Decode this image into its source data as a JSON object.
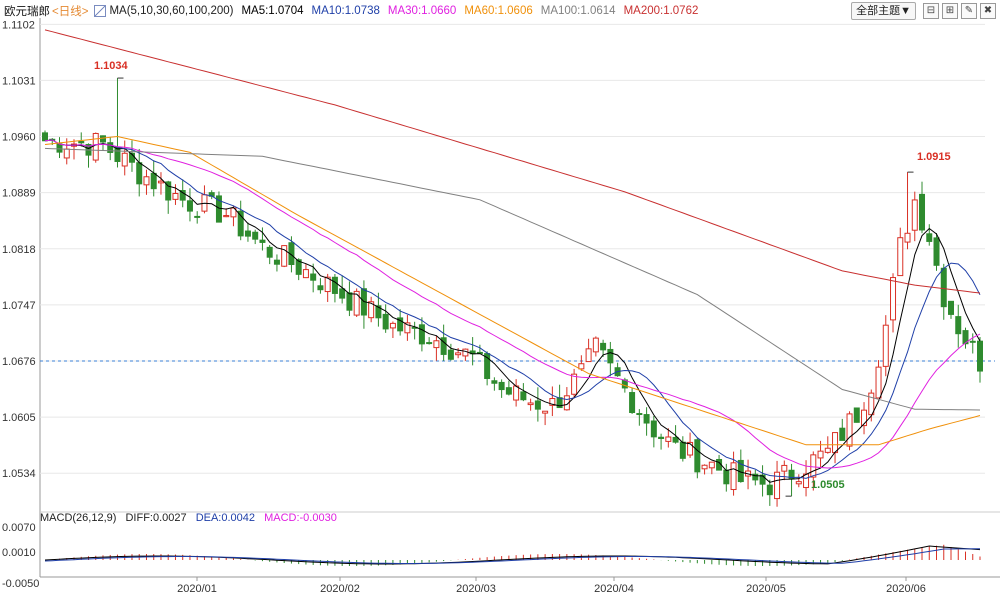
{
  "header": {
    "symbol": "欧元瑞郎",
    "period": "<日线>",
    "ma_def": "MA(5,10,30,60,100,200)",
    "ma": [
      {
        "label": "MA5:1.0704",
        "color": "#000000"
      },
      {
        "label": "MA10:1.0738",
        "color": "#1f3fa8"
      },
      {
        "label": "MA30:1.0660",
        "color": "#e020e0"
      },
      {
        "label": "MA60:1.0606",
        "color": "#f0900a"
      },
      {
        "label": "MA100:1.0614",
        "color": "#808080"
      },
      {
        "label": "MA200:1.0762",
        "color": "#c83030"
      }
    ]
  },
  "toolbar": {
    "theme_label": "全部主题▼",
    "b1": "⊟",
    "b2": "⊞",
    "b3": "✎",
    "b4": "✖"
  },
  "macd_header": {
    "label": "MACD(26,12,9)",
    "diff": "DIFF:0.0027",
    "dea": "DEA:0.0042",
    "macd": "MACD:-0.0030"
  },
  "annotations": {
    "high1": "1.1034",
    "high2": "1.0915",
    "low1": "1.0505"
  },
  "chart_data": {
    "type": "candlestick",
    "y_ticks": [
      "1.1102",
      "1.1031",
      "1.0960",
      "1.0889",
      "1.0818",
      "1.0747",
      "1.0676",
      "1.0605",
      "1.0534"
    ],
    "y_tick_values": [
      1.1102,
      1.1031,
      1.096,
      1.0889,
      1.0818,
      1.0747,
      1.0676,
      1.0605,
      1.0534
    ],
    "macd_ticks": [
      "0.0070",
      "0.0010",
      "-0.0050"
    ],
    "x_labels": [
      "2020/01",
      "2020/02",
      "2020/03",
      "2020/04",
      "2020/05",
      "2020/06"
    ],
    "current_price": 1.0676,
    "colors": {
      "up": "#d93025",
      "down": "#2e8b2e",
      "grid": "#e8e8e8",
      "current_line": "#3a7fd5"
    }
  }
}
